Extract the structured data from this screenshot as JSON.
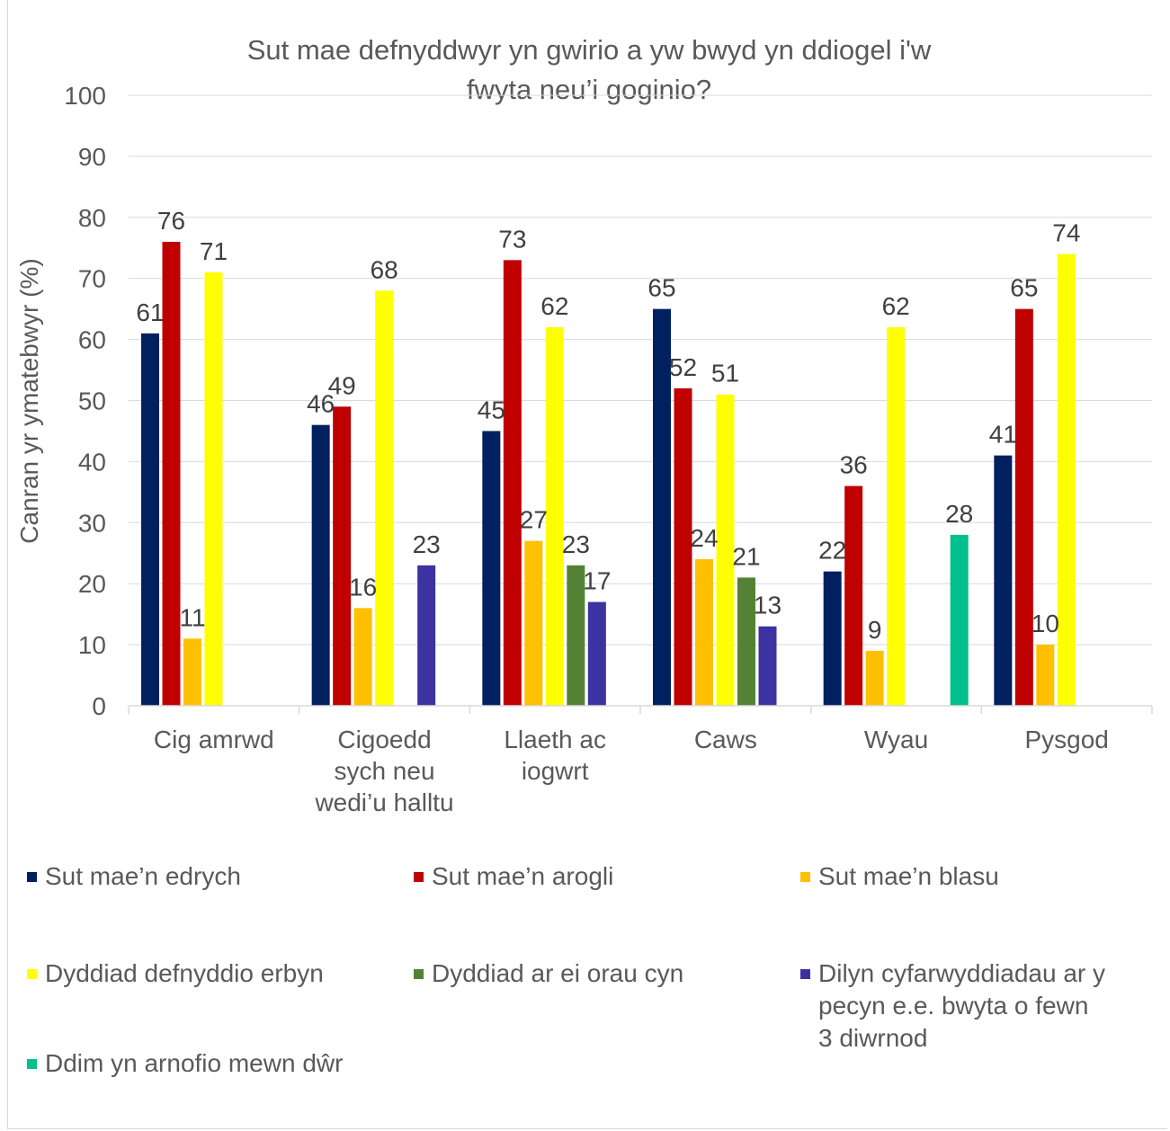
{
  "chart_data": {
    "type": "bar",
    "title": "Sut mae defnyddwyr yn gwirio a yw bwyd yn ddiogel i'w fwyta neu’i goginio?",
    "title_lines": [
      "Sut mae defnyddwyr yn gwirio a yw bwyd yn ddiogel i'w",
      "fwyta neu’i goginio?"
    ],
    "ylabel": "Canran yr ymatebwyr (%)",
    "xlabel": "",
    "ylim": [
      0,
      100
    ],
    "yticks": [
      "0",
      "10",
      "20",
      "30",
      "40",
      "50",
      "60",
      "70",
      "80",
      "90",
      "100"
    ],
    "grid": true,
    "legend_position": "bottom",
    "categories": [
      [
        "Cig amrwd"
      ],
      [
        "Cigoedd",
        "sych neu",
        "wedi’u halltu"
      ],
      [
        "Llaeth ac",
        "iogwrt"
      ],
      [
        "Caws"
      ],
      [
        "Wyau"
      ],
      [
        "Pysgod"
      ]
    ],
    "series": [
      {
        "name": "Sut mae’n edrych",
        "color": "#002060",
        "values": [
          61,
          46,
          45,
          65,
          22,
          41
        ]
      },
      {
        "name": "Sut mae’n arogli",
        "color": "#c00000",
        "values": [
          76,
          49,
          73,
          52,
          36,
          65
        ]
      },
      {
        "name": "Sut mae’n blasu",
        "color": "#ffc000",
        "values": [
          11,
          16,
          27,
          24,
          9,
          10
        ]
      },
      {
        "name": "Dyddiad defnyddio erbyn",
        "color": "#ffff00",
        "values": [
          71,
          68,
          62,
          51,
          62,
          74
        ]
      },
      {
        "name": "Dyddiad ar ei orau cyn",
        "color": "#548235",
        "values": [
          null,
          null,
          23,
          21,
          null,
          null
        ]
      },
      {
        "name": "Dilyn cyfarwyddiadau ar y\npecyn e.e. bwyta o fewn\n3 diwrnod",
        "color": "#3c32a0",
        "values": [
          null,
          23,
          17,
          13,
          null,
          null
        ]
      },
      {
        "name": "Ddim yn arnofio mewn dŵr",
        "color": "#00c08b",
        "values": [
          null,
          null,
          null,
          null,
          28,
          null
        ]
      }
    ]
  }
}
